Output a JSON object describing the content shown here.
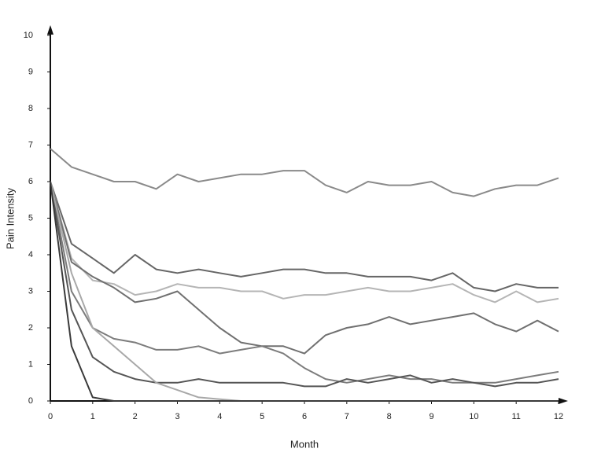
{
  "chart_data": {
    "type": "line",
    "x_label": "Month",
    "y_label": "Pain Intensity",
    "x": [
      0,
      0.5,
      1,
      1.5,
      2,
      2.5,
      3,
      3.5,
      4,
      4.5,
      5,
      5.5,
      6,
      6.5,
      7,
      7.5,
      8,
      8.5,
      9,
      9.5,
      10,
      10.5,
      11,
      11.5,
      12
    ],
    "xlim": [
      0,
      12
    ],
    "xticks": [
      0,
      1,
      2,
      3,
      4,
      5,
      6,
      7,
      8,
      9,
      10,
      11,
      12
    ],
    "ylim": [
      0,
      10
    ],
    "yticks": [
      0,
      1,
      2,
      3,
      4,
      5,
      6,
      7,
      8,
      9,
      10
    ],
    "series": [
      {
        "color": "#8a8a8a",
        "values": [
          6.9,
          6.4,
          6.2,
          6.0,
          6.0,
          5.8,
          6.2,
          6.0,
          6.1,
          6.2,
          6.2,
          6.3,
          6.3,
          5.9,
          5.7,
          6.0,
          5.9,
          5.9,
          6.0,
          5.7,
          5.6,
          5.8,
          5.9,
          5.9,
          6.1
        ]
      },
      {
        "color": "#666666",
        "values": [
          6.0,
          4.3,
          3.9,
          3.5,
          4.0,
          3.6,
          3.5,
          3.6,
          3.5,
          3.4,
          3.5,
          3.6,
          3.6,
          3.5,
          3.5,
          3.4,
          3.4,
          3.4,
          3.3,
          3.5,
          3.1,
          3.0,
          3.2,
          3.1,
          3.1
        ]
      },
      {
        "color": "#b5b5b5",
        "values": [
          6.0,
          3.9,
          3.3,
          3.2,
          2.9,
          3.0,
          3.2,
          3.1,
          3.1,
          3.0,
          3.0,
          2.8,
          2.9,
          2.9,
          3.0,
          3.1,
          3.0,
          3.0,
          3.1,
          3.2,
          2.9,
          2.7,
          3.0,
          2.7,
          2.8
        ]
      },
      {
        "color": "#707070",
        "values": [
          6.0,
          3.8,
          3.4,
          3.1,
          2.7,
          2.8,
          3.0,
          2.5,
          2.0,
          1.6,
          1.5,
          1.5,
          1.3,
          1.8,
          2.0,
          2.1,
          2.3,
          2.1,
          2.2,
          2.3,
          2.4,
          2.1,
          1.9,
          2.2,
          1.9
        ]
      },
      {
        "color": "#7c7c7c",
        "values": [
          6.0,
          3.0,
          2.0,
          1.7,
          1.6,
          1.4,
          1.4,
          1.5,
          1.3,
          1.4,
          1.5,
          1.3,
          0.9,
          0.6,
          0.5,
          0.6,
          0.7,
          0.6,
          0.6,
          0.5,
          0.5,
          0.5,
          0.6,
          0.7,
          0.8
        ]
      },
      {
        "color": "#555555",
        "values": [
          6.0,
          2.5,
          1.2,
          0.8,
          0.6,
          0.5,
          0.5,
          0.6,
          0.5,
          0.5,
          0.5,
          0.5,
          0.4,
          0.4,
          0.6,
          0.5,
          0.6,
          0.7,
          0.5,
          0.6,
          0.5,
          0.4,
          0.5,
          0.5,
          0.6
        ]
      },
      {
        "color": "#a8a8a8",
        "values": [
          6.0,
          3.5,
          2.0,
          1.5,
          1.0,
          0.5,
          0.3,
          0.1,
          0.05,
          0,
          0,
          0,
          0,
          0,
          0,
          0,
          0,
          0,
          0,
          0,
          0,
          0,
          0,
          0,
          0
        ]
      },
      {
        "color": "#3a3a3a",
        "values": [
          6.0,
          1.5,
          0.1,
          0,
          0,
          0,
          0,
          0,
          0,
          0,
          0,
          0,
          0,
          0,
          0,
          0,
          0,
          0,
          0,
          0,
          0,
          0,
          0,
          0,
          0
        ]
      }
    ]
  }
}
